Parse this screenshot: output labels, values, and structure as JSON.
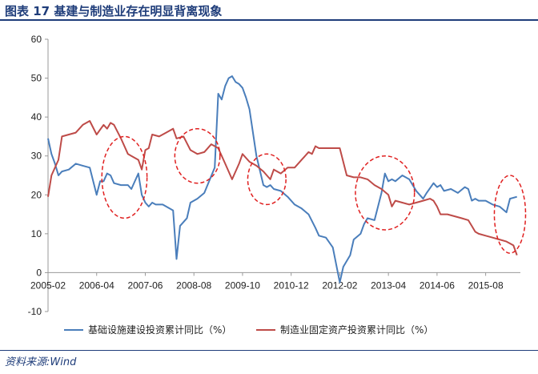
{
  "header": {
    "title": "图表 17   基建与制造业存在明显背离现象"
  },
  "footer": {
    "source": "资料来源:Wind"
  },
  "colors": {
    "title": "#1f3d7a",
    "series_infra": "#4a7ebb",
    "series_mfg": "#be4b48",
    "ellipse": "#e02020"
  },
  "chart_data": {
    "type": "line",
    "ylim": [
      -10,
      60
    ],
    "yticks": [
      -10,
      0,
      10,
      20,
      30,
      40,
      50,
      60
    ],
    "xlim": [
      "2005-02",
      "2016-06"
    ],
    "xticks": [
      "2005-02",
      "2006-04",
      "2007-06",
      "2008-08",
      "2009-10",
      "2010-12",
      "2012-02",
      "2013-04",
      "2014-06",
      "2015-08"
    ],
    "grid": false,
    "legend_position": "bottom",
    "series": [
      {
        "name": "基础设施建设投资累计同比（%）",
        "color": "#4a7ebb",
        "points": [
          [
            "2005-02",
            34.5
          ],
          [
            "2005-03",
            30.5
          ],
          [
            "2005-04",
            28.0
          ],
          [
            "2005-05",
            25.0
          ],
          [
            "2005-06",
            26.0
          ],
          [
            "2005-08",
            26.5
          ],
          [
            "2005-10",
            28.0
          ],
          [
            "2005-12",
            27.5
          ],
          [
            "2006-02",
            27.0
          ],
          [
            "2006-04",
            20.0
          ],
          [
            "2006-05",
            23.5
          ],
          [
            "2006-06",
            23.5
          ],
          [
            "2006-07",
            25.5
          ],
          [
            "2006-08",
            25.0
          ],
          [
            "2006-09",
            23.0
          ],
          [
            "2006-11",
            22.5
          ],
          [
            "2007-01",
            22.5
          ],
          [
            "2007-02",
            21.5
          ],
          [
            "2007-04",
            25.5
          ],
          [
            "2007-05",
            20.0
          ],
          [
            "2007-06",
            18.0
          ],
          [
            "2007-07",
            17.0
          ],
          [
            "2007-08",
            18.0
          ],
          [
            "2007-09",
            17.5
          ],
          [
            "2007-11",
            17.5
          ],
          [
            "2008-01",
            16.5
          ],
          [
            "2008-02",
            16.0
          ],
          [
            "2008-03",
            3.5
          ],
          [
            "2008-04",
            12.0
          ],
          [
            "2008-06",
            14.0
          ],
          [
            "2008-07",
            18.0
          ],
          [
            "2008-09",
            19.0
          ],
          [
            "2008-11",
            20.5
          ],
          [
            "2009-02",
            27.0
          ],
          [
            "2009-03",
            46.0
          ],
          [
            "2009-04",
            44.5
          ],
          [
            "2009-05",
            48.0
          ],
          [
            "2009-06",
            50.0
          ],
          [
            "2009-07",
            50.5
          ],
          [
            "2009-08",
            49.0
          ],
          [
            "2009-09",
            48.5
          ],
          [
            "2009-10",
            47.5
          ],
          [
            "2009-11",
            45.0
          ],
          [
            "2009-12",
            42.0
          ],
          [
            "2010-02",
            30.0
          ],
          [
            "2010-04",
            22.5
          ],
          [
            "2010-05",
            22.0
          ],
          [
            "2010-06",
            22.5
          ],
          [
            "2010-07",
            21.5
          ],
          [
            "2010-09",
            21.0
          ],
          [
            "2010-11",
            19.5
          ],
          [
            "2011-01",
            17.5
          ],
          [
            "2011-03",
            16.5
          ],
          [
            "2011-05",
            15.0
          ],
          [
            "2011-07",
            11.5
          ],
          [
            "2011-08",
            9.5
          ],
          [
            "2011-10",
            9.0
          ],
          [
            "2011-12",
            6.5
          ],
          [
            "2012-02",
            -2.5
          ],
          [
            "2012-03",
            1.5
          ],
          [
            "2012-05",
            4.5
          ],
          [
            "2012-06",
            8.5
          ],
          [
            "2012-08",
            10.0
          ],
          [
            "2012-09",
            12.5
          ],
          [
            "2012-10",
            14.0
          ],
          [
            "2012-12",
            13.5
          ],
          [
            "2013-02",
            20.5
          ],
          [
            "2013-03",
            25.5
          ],
          [
            "2013-04",
            23.5
          ],
          [
            "2013-05",
            24.0
          ],
          [
            "2013-06",
            23.5
          ],
          [
            "2013-08",
            25.0
          ],
          [
            "2013-10",
            24.0
          ],
          [
            "2013-11",
            22.5
          ],
          [
            "2013-12",
            21.0
          ],
          [
            "2014-02",
            19.0
          ],
          [
            "2014-03",
            20.5
          ],
          [
            "2014-05",
            23.0
          ],
          [
            "2014-06",
            22.0
          ],
          [
            "2014-07",
            22.5
          ],
          [
            "2014-08",
            21.0
          ],
          [
            "2014-10",
            21.5
          ],
          [
            "2014-12",
            20.5
          ],
          [
            "2015-02",
            22.0
          ],
          [
            "2015-03",
            21.5
          ],
          [
            "2015-04",
            18.5
          ],
          [
            "2015-05",
            19.0
          ],
          [
            "2015-06",
            18.5
          ],
          [
            "2015-08",
            18.5
          ],
          [
            "2015-10",
            17.5
          ],
          [
            "2015-12",
            17.0
          ],
          [
            "2016-02",
            15.5
          ],
          [
            "2016-03",
            19.0
          ],
          [
            "2016-05",
            19.5
          ]
        ]
      },
      {
        "name": "制造业固定资产投资累计同比（%）",
        "color": "#be4b48",
        "points": [
          [
            "2005-02",
            19.5
          ],
          [
            "2005-03",
            25.0
          ],
          [
            "2005-05",
            29.0
          ],
          [
            "2005-06",
            35.0
          ],
          [
            "2005-08",
            35.5
          ],
          [
            "2005-10",
            36.0
          ],
          [
            "2005-12",
            38.0
          ],
          [
            "2006-02",
            39.0
          ],
          [
            "2006-04",
            35.5
          ],
          [
            "2006-06",
            38.0
          ],
          [
            "2006-07",
            37.0
          ],
          [
            "2006-08",
            38.5
          ],
          [
            "2006-09",
            38.0
          ],
          [
            "2006-11",
            34.5
          ],
          [
            "2007-01",
            30.5
          ],
          [
            "2007-02",
            30.0
          ],
          [
            "2007-04",
            29.0
          ],
          [
            "2007-05",
            26.5
          ],
          [
            "2007-06",
            31.5
          ],
          [
            "2007-07",
            32.0
          ],
          [
            "2007-08",
            35.5
          ],
          [
            "2007-10",
            35.0
          ],
          [
            "2007-12",
            36.0
          ],
          [
            "2008-02",
            37.0
          ],
          [
            "2008-03",
            34.5
          ],
          [
            "2008-05",
            35.0
          ],
          [
            "2008-07",
            31.5
          ],
          [
            "2008-09",
            30.5
          ],
          [
            "2008-11",
            31.0
          ],
          [
            "2009-01",
            33.0
          ],
          [
            "2009-03",
            32.0
          ],
          [
            "2009-05",
            28.0
          ],
          [
            "2009-07",
            24.0
          ],
          [
            "2009-09",
            28.0
          ],
          [
            "2009-10",
            30.5
          ],
          [
            "2009-12",
            28.5
          ],
          [
            "2010-02",
            27.5
          ],
          [
            "2010-04",
            26.0
          ],
          [
            "2010-06",
            24.0
          ],
          [
            "2010-07",
            26.5
          ],
          [
            "2010-09",
            25.5
          ],
          [
            "2010-11",
            27.0
          ],
          [
            "2011-01",
            27.0
          ],
          [
            "2011-03",
            29.0
          ],
          [
            "2011-05",
            31.0
          ],
          [
            "2011-06",
            30.5
          ],
          [
            "2011-07",
            32.5
          ],
          [
            "2011-08",
            32.0
          ],
          [
            "2011-10",
            32.0
          ],
          [
            "2011-12",
            32.0
          ],
          [
            "2012-02",
            32.0
          ],
          [
            "2012-04",
            25.0
          ],
          [
            "2012-06",
            24.5
          ],
          [
            "2012-08",
            24.5
          ],
          [
            "2012-10",
            24.0
          ],
          [
            "2012-12",
            22.5
          ],
          [
            "2013-02",
            21.5
          ],
          [
            "2013-04",
            20.0
          ],
          [
            "2013-05",
            17.0
          ],
          [
            "2013-06",
            18.5
          ],
          [
            "2013-08",
            18.0
          ],
          [
            "2013-10",
            17.5
          ],
          [
            "2013-12",
            18.0
          ],
          [
            "2014-02",
            18.5
          ],
          [
            "2014-04",
            19.0
          ],
          [
            "2014-05",
            18.5
          ],
          [
            "2014-06",
            17.0
          ],
          [
            "2014-07",
            15.0
          ],
          [
            "2014-09",
            15.0
          ],
          [
            "2014-11",
            14.5
          ],
          [
            "2015-01",
            14.0
          ],
          [
            "2015-03",
            13.5
          ],
          [
            "2015-04",
            12.0
          ],
          [
            "2015-05",
            10.5
          ],
          [
            "2015-06",
            10.0
          ],
          [
            "2015-08",
            9.5
          ],
          [
            "2015-10",
            9.0
          ],
          [
            "2015-12",
            8.5
          ],
          [
            "2016-02",
            8.0
          ],
          [
            "2016-03",
            7.5
          ],
          [
            "2016-04",
            7.0
          ],
          [
            "2016-05",
            4.5
          ]
        ]
      }
    ],
    "annotations": [
      {
        "type": "dashed-ellipse",
        "cx": "2006-12",
        "cy": 24.5,
        "rx_months": 6.5,
        "ry": 10.5
      },
      {
        "type": "dashed-ellipse",
        "cx": "2008-09",
        "cy": 30.0,
        "rx_months": 6.5,
        "ry": 7.0
      },
      {
        "type": "dashed-ellipse",
        "cx": "2010-05",
        "cy": 24.0,
        "rx_months": 5.5,
        "ry": 6.5
      },
      {
        "type": "dashed-ellipse",
        "cx": "2013-03",
        "cy": 20.5,
        "rx_months": 8.5,
        "ry": 9.5
      },
      {
        "type": "dashed-ellipse",
        "cx": "2016-03",
        "cy": 15.0,
        "rx_months": 4.5,
        "ry": 10.0
      }
    ]
  }
}
